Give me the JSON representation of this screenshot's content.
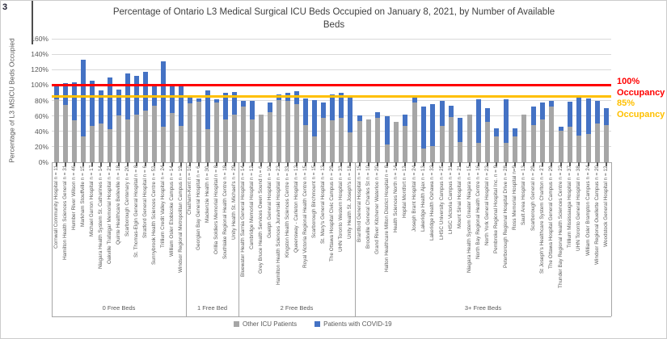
{
  "artifacts": {
    "corner_text": "3"
  },
  "title": {
    "line1": "Percentage of Ontario L3 Medical Surgical ICU Beds Occupied on January 8, 2021, by Number of Available",
    "line2": "Beds"
  },
  "annotations": {
    "red_line1": "100%",
    "red_line2": "Occupancy",
    "yellow_line1": "85%",
    "yellow_line2": "Occupancy"
  },
  "legend": [
    {
      "label": "Other ICU Patients",
      "color": "#a6a6a6"
    },
    {
      "label": "Patients with COVID-19",
      "color": "#4472c4"
    }
  ],
  "chart_data": {
    "type": "bar",
    "stacked": true,
    "title": "Percentage of Ontario L3 Medical Surgical ICU Beds Occupied on January 8, 2021, by Number of Available Beds",
    "ylabel": "Percentage of L3 MSICU Beds Occupied",
    "ylim": [
      0,
      160
    ],
    "ytick_step": 20,
    "ytick_labels": [
      "0%",
      "20%",
      "40%",
      "60%",
      "80%",
      "100%",
      "120%",
      "140%",
      "160%"
    ],
    "grid": true,
    "legend_position": "bottom",
    "series_names": [
      "Other ICU Patients",
      "Patients with COVID-19"
    ],
    "reference_lines": [
      {
        "value": 100,
        "color": "#ff0000",
        "label": "100% Occupancy"
      },
      {
        "value": 85,
        "color": "#ffc000",
        "label": "85% Occupancy"
      }
    ],
    "groups": [
      {
        "label": "0 Free Beds",
        "hospitals": [
          {
            "name": "Cornwall Community Hospital n = 11",
            "other": 82,
            "covid": 18
          },
          {
            "name": "Hamilton Health Sciences General  n = 31",
            "other": 74,
            "covid": 29
          },
          {
            "name": "Humber River Wilson n = 46",
            "other": 54,
            "covid": 50
          },
          {
            "name": "Markham Stouffville n = 15",
            "other": 33,
            "covid": 100
          },
          {
            "name": "Michael Garron Hospital n = 17",
            "other": 47,
            "covid": 59
          },
          {
            "name": "Niagara Health System St. Catharines n = 14",
            "other": 50,
            "covid": 43
          },
          {
            "name": "Oakville Trafalgar Memorial Hospital n = 21",
            "other": 43,
            "covid": 67
          },
          {
            "name": "Quinte Healthcare Belleville n = 18",
            "other": 61,
            "covid": 33
          },
          {
            "name": "Scarborough Centenary n = 20",
            "other": 55,
            "covid": 60
          },
          {
            "name": "St. Thomas-Elgin General Hospital n = 8",
            "other": 62,
            "covid": 50
          },
          {
            "name": "Stratford General Hospital n = 6",
            "other": 67,
            "covid": 50
          },
          {
            "name": "Sunnybrook Health Sciences Centre n = 52",
            "other": 73,
            "covid": 27
          },
          {
            "name": "Trillium Credit Valley Hospital n = 24",
            "other": 46,
            "covid": 85
          },
          {
            "name": "William Osler Etobicoke Campus n = 14",
            "other": 64,
            "covid": 36
          },
          {
            "name": "Windsor Regional Metropolitan Campus n = 19",
            "other": 47,
            "covid": 53
          }
        ]
      },
      {
        "label": "1 Free Bed",
        "hospitals": [
          {
            "name": "Chatham-Kent n = 10",
            "other": 76,
            "covid": 9
          },
          {
            "name": "Georgian Bay General Hospital n = 6",
            "other": 78,
            "covid": 5
          },
          {
            "name": "Mackenzie Health n = 30",
            "other": 43,
            "covid": 50
          },
          {
            "name": "Orillia Soldiers Memorial Hospital n = 8",
            "other": 77,
            "covid": 5
          },
          {
            "name": "Southlake Regional Health Centre n = 18",
            "other": 55,
            "covid": 35
          },
          {
            "name": "Unity Health St. Michael's n = 29",
            "other": 62,
            "covid": 29
          }
        ]
      },
      {
        "label": "2 Free Beds",
        "hospitals": [
          {
            "name": "Bluewater Health Sarnia General Hospital n = 14",
            "other": 72,
            "covid": 7
          },
          {
            "name": "Cambridge Memorial Hospital n = 12",
            "other": 55,
            "covid": 25
          },
          {
            "name": "Grey Bruce Health Services Owen Sound n = 6",
            "other": 62,
            "covid": 0
          },
          {
            "name": "Guelph General Hospital n = 10",
            "other": 65,
            "covid": 12
          },
          {
            "name": "Hamilton Health Sciences Juravinski Hospital n = 23",
            "other": 81,
            "covid": 7
          },
          {
            "name": "Kingston Health Sciences Centre  n = 33",
            "other": 80,
            "covid": 10
          },
          {
            "name": "Queensway - Carleton Hospital n = 12",
            "other": 75,
            "covid": 17
          },
          {
            "name": "Royal Victoria Regional Health Centre n = 15",
            "other": 48,
            "covid": 35
          },
          {
            "name": "Scarborough Birchmount n = 15",
            "other": 33,
            "covid": 48
          },
          {
            "name": "St. Mary's General Hospital n = 13",
            "other": 58,
            "covid": 19
          },
          {
            "name": "The Ottawa Hospital Civic Campus n = 29",
            "other": 54,
            "covid": 34
          },
          {
            "name": "UHN Toronto Western Hospital n = 33",
            "other": 57,
            "covid": 33
          },
          {
            "name": "Unity Health St. Joseph's n = 18",
            "other": 39,
            "covid": 45
          }
        ]
      },
      {
        "label": "3+ Free Beds",
        "hospitals": [
          {
            "name": "Brantford General Hospital n = 15",
            "other": 53,
            "covid": 8
          },
          {
            "name": "Brockville General Charles St n = 10",
            "other": 55,
            "covid": 0
          },
          {
            "name": "Grand River Kitchener Waterloo n = 20",
            "other": 57,
            "covid": 8
          },
          {
            "name": "Halton Healthcare Milton District Hospital  n = 8",
            "other": 23,
            "covid": 37
          },
          {
            "name": "Health Sciences North n = 14",
            "other": 52,
            "covid": 0
          },
          {
            "name": "Hopital Montfort n = 12",
            "other": 47,
            "covid": 15
          },
          {
            "name": "Joseph Brant Hospital n = 24",
            "other": 77,
            "covid": 7
          },
          {
            "name": "Lakeridge Health Ajax n = 13",
            "other": 18,
            "covid": 54
          },
          {
            "name": "Lakeridge Health Oshawa n = 32",
            "other": 21,
            "covid": 54
          },
          {
            "name": "LHSC University Campus n = 25",
            "other": 47,
            "covid": 33
          },
          {
            "name": "LHSC Victoria Campus n = 31",
            "other": 59,
            "covid": 14
          },
          {
            "name": "Mount Sinai Hospital n = 21",
            "other": 26,
            "covid": 31
          },
          {
            "name": "Niagara Health System Greater Niagara n = 15",
            "other": 62,
            "covid": 0
          },
          {
            "name": "North Bay Regional Health Centre n = 16",
            "other": 25,
            "covid": 57
          },
          {
            "name": "North York General Hospital n = 23",
            "other": 52,
            "covid": 18
          },
          {
            "name": "Pembroke Regional Hospital Inc. n = 9",
            "other": 33,
            "covid": 11
          },
          {
            "name": "Peterborough Regional Hospital Drive n = 28",
            "other": 25,
            "covid": 57
          },
          {
            "name": "Ross Memorial Hospital n=9",
            "other": 33,
            "covid": 11
          },
          {
            "name": "Sault Area Hospital n = 13",
            "other": 62,
            "covid": 0
          },
          {
            "name": "Scarborough General n = 29",
            "other": 48,
            "covid": 24
          },
          {
            "name": "St Joseph's Healthcare System Charlton n = 27",
            "other": 55,
            "covid": 22
          },
          {
            "name": "The Ottawa Hospital General Campus n = 29",
            "other": 72,
            "covid": 7
          },
          {
            "name": "Thunder Bay Regional Health Sciences Centre n = 22",
            "other": 41,
            "covid": 5
          },
          {
            "name": "Trillium Mississauga Hospital n = 37",
            "other": 46,
            "covid": 32
          },
          {
            "name": "UHN Toronto General Hospital n = 38",
            "other": 34,
            "covid": 50
          },
          {
            "name": "William Osler Brampton Campus n = 24",
            "other": 37,
            "covid": 46
          },
          {
            "name": "Windsor Regional Ouellette Campus n = 20",
            "other": 50,
            "covid": 30
          },
          {
            "name": "Woodstock General Hospital n = 12",
            "other": 48,
            "covid": 22
          }
        ]
      }
    ]
  }
}
